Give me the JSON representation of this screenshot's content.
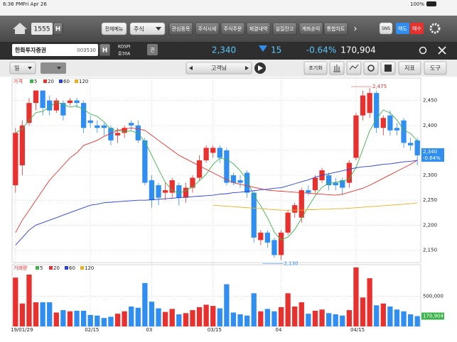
{
  "status_bar": {
    "time": "6:36 PM",
    "date": "Fri Apr 26",
    "battery": "100%"
  },
  "toolbar": {
    "code": "1555",
    "code_suffix": "H",
    "menu_all": "전체메뉴",
    "dropdown": "주식",
    "tabs": [
      "관심종목",
      "주식시세",
      "주식주문",
      "체결내역",
      "실질잔고",
      "계좌손익",
      "통합차트"
    ],
    "sns": "SNS",
    "sell": "매도",
    "buy": "매수"
  },
  "stock": {
    "name": "한화투자증권",
    "code": "003530",
    "code_suffix": "H",
    "market": "KOSPI",
    "market_sub": "증30A",
    "badge": "관",
    "price": "2,340",
    "change": "15",
    "change_pct": "-0.64%",
    "volume": "170,904"
  },
  "controls": {
    "period": "일",
    "mode": "고객님",
    "reset": "초기화",
    "indicator": "지표",
    "tools": "도구"
  },
  "price_panel": {
    "legend_title": "가격",
    "up_color": "#e8312f",
    "down_color": "#2f8ef0",
    "ylim": [
      2125,
      2495
    ],
    "yticks": [
      {
        "value": 2150,
        "label": "2,150"
      },
      {
        "value": 2200,
        "label": "2,200"
      },
      {
        "value": 2250,
        "label": "2,250"
      },
      {
        "value": 2300,
        "label": "2,300"
      },
      {
        "value": 2350,
        "label": "2,350"
      },
      {
        "value": 2400,
        "label": "2,400"
      },
      {
        "value": 2450,
        "label": "2,450"
      }
    ],
    "categories": [
      "19/01/29",
      null,
      null,
      null,
      null,
      null,
      null,
      null,
      null,
      null,
      null,
      "02/15",
      null,
      null,
      null,
      null,
      null,
      null,
      null,
      null,
      "03",
      null,
      null,
      null,
      null,
      null,
      null,
      null,
      null,
      "03/15",
      null,
      null,
      null,
      null,
      null,
      null,
      null,
      null,
      null,
      "04",
      null,
      null,
      null,
      null,
      null,
      null,
      null,
      null,
      null,
      null,
      "04/15",
      null,
      null,
      null,
      null,
      null,
      null,
      null,
      null,
      null
    ],
    "candles": [
      {
        "o": 2280,
        "h": 2395,
        "l": 2265,
        "c": 2385
      },
      {
        "o": 2320,
        "h": 2410,
        "l": 2300,
        "c": 2400
      },
      {
        "o": 2405,
        "h": 2455,
        "l": 2400,
        "c": 2445
      },
      {
        "o": 2445,
        "h": 2470,
        "l": 2430,
        "c": 2470
      },
      {
        "o": 2470,
        "h": 2470,
        "l": 2420,
        "c": 2435
      },
      {
        "o": 2450,
        "h": 2460,
        "l": 2420,
        "c": 2430
      },
      {
        "o": 2430,
        "h": 2455,
        "l": 2425,
        "c": 2450
      },
      {
        "o": 2445,
        "h": 2450,
        "l": 2410,
        "c": 2420
      },
      {
        "o": 2445,
        "h": 2455,
        "l": 2440,
        "c": 2450
      },
      {
        "o": 2450,
        "h": 2455,
        "l": 2435,
        "c": 2445
      },
      {
        "o": 2445,
        "h": 2450,
        "l": 2385,
        "c": 2395
      },
      {
        "o": 2410,
        "h": 2420,
        "l": 2395,
        "c": 2405
      },
      {
        "o": 2400,
        "h": 2410,
        "l": 2385,
        "c": 2395
      },
      {
        "o": 2400,
        "h": 2405,
        "l": 2380,
        "c": 2395
      },
      {
        "o": 2395,
        "h": 2400,
        "l": 2360,
        "c": 2370
      },
      {
        "o": 2380,
        "h": 2395,
        "l": 2365,
        "c": 2385
      },
      {
        "o": 2385,
        "h": 2400,
        "l": 2375,
        "c": 2395
      },
      {
        "o": 2405,
        "h": 2410,
        "l": 2390,
        "c": 2400
      },
      {
        "o": 2400,
        "h": 2410,
        "l": 2365,
        "c": 2370
      },
      {
        "o": 2370,
        "h": 2375,
        "l": 2280,
        "c": 2285
      },
      {
        "o": 2290,
        "h": 2300,
        "l": 2235,
        "c": 2250
      },
      {
        "o": 2280,
        "h": 2285,
        "l": 2240,
        "c": 2255
      },
      {
        "o": 2265,
        "h": 2285,
        "l": 2250,
        "c": 2270
      },
      {
        "o": 2265,
        "h": 2295,
        "l": 2255,
        "c": 2290
      },
      {
        "o": 2280,
        "h": 2285,
        "l": 2240,
        "c": 2255
      },
      {
        "o": 2255,
        "h": 2285,
        "l": 2245,
        "c": 2275
      },
      {
        "o": 2275,
        "h": 2300,
        "l": 2265,
        "c": 2295
      },
      {
        "o": 2295,
        "h": 2340,
        "l": 2290,
        "c": 2330
      },
      {
        "o": 2330,
        "h": 2360,
        "l": 2325,
        "c": 2355
      },
      {
        "o": 2345,
        "h": 2360,
        "l": 2335,
        "c": 2355
      },
      {
        "o": 2355,
        "h": 2360,
        "l": 2325,
        "c": 2335
      },
      {
        "o": 2350,
        "h": 2355,
        "l": 2280,
        "c": 2285
      },
      {
        "o": 2300,
        "h": 2305,
        "l": 2280,
        "c": 2285
      },
      {
        "o": 2290,
        "h": 2300,
        "l": 2275,
        "c": 2285
      },
      {
        "o": 2305,
        "h": 2310,
        "l": 2255,
        "c": 2265
      },
      {
        "o": 2265,
        "h": 2270,
        "l": 2165,
        "c": 2175
      },
      {
        "o": 2170,
        "h": 2190,
        "l": 2160,
        "c": 2185
      },
      {
        "o": 2185,
        "h": 2190,
        "l": 2155,
        "c": 2165
      },
      {
        "o": 2170,
        "h": 2175,
        "l": 2135,
        "c": 2140
      },
      {
        "o": 2140,
        "h": 2190,
        "l": 2130,
        "c": 2185
      },
      {
        "o": 2185,
        "h": 2230,
        "l": 2180,
        "c": 2225
      },
      {
        "o": 2225,
        "h": 2245,
        "l": 2215,
        "c": 2240
      },
      {
        "o": 2215,
        "h": 2275,
        "l": 2205,
        "c": 2270
      },
      {
        "o": 2270,
        "h": 2280,
        "l": 2260,
        "c": 2265
      },
      {
        "o": 2270,
        "h": 2300,
        "l": 2265,
        "c": 2295
      },
      {
        "o": 2290,
        "h": 2315,
        "l": 2285,
        "c": 2310
      },
      {
        "o": 2300,
        "h": 2305,
        "l": 2270,
        "c": 2280
      },
      {
        "o": 2285,
        "h": 2295,
        "l": 2270,
        "c": 2280
      },
      {
        "o": 2290,
        "h": 2295,
        "l": 2260,
        "c": 2275
      },
      {
        "o": 2285,
        "h": 2330,
        "l": 2275,
        "c": 2325
      },
      {
        "o": 2335,
        "h": 2425,
        "l": 2330,
        "c": 2420
      },
      {
        "o": 2420,
        "h": 2470,
        "l": 2410,
        "c": 2460
      },
      {
        "o": 2425,
        "h": 2475,
        "l": 2415,
        "c": 2465
      },
      {
        "o": 2465,
        "h": 2470,
        "l": 2385,
        "c": 2395
      },
      {
        "o": 2395,
        "h": 2420,
        "l": 2380,
        "c": 2415
      },
      {
        "o": 2420,
        "h": 2430,
        "l": 2380,
        "c": 2390
      },
      {
        "o": 2395,
        "h": 2405,
        "l": 2380,
        "c": 2390
      },
      {
        "o": 2410,
        "h": 2415,
        "l": 2355,
        "c": 2365
      },
      {
        "o": 2365,
        "h": 2375,
        "l": 2350,
        "c": 2360
      },
      {
        "o": 2370,
        "h": 2375,
        "l": 2320,
        "c": 2340
      }
    ],
    "series": [
      {
        "name": "5",
        "color": "#3cb44b",
        "values": [
          2385,
          2393,
          2410,
          2426,
          2428,
          2437,
          2447,
          2442,
          2437,
          2439,
          2432,
          2423,
          2418,
          2407,
          2392,
          2390,
          2388,
          2389,
          2384,
          2367,
          2340,
          2312,
          2286,
          2270,
          2264,
          2269,
          2277,
          2289,
          2302,
          2322,
          2334,
          2332,
          2323,
          2309,
          2291,
          2259,
          2239,
          2215,
          2186,
          2170,
          2176,
          2191,
          2214,
          2237,
          2259,
          2276,
          2284,
          2286,
          2288,
          2293,
          2316,
          2352,
          2389,
          2413,
          2431,
          2425,
          2411,
          2391,
          2384,
          2369
        ]
      },
      {
        "name": "20",
        "color": "#e8312f",
        "values": [
          2185,
          2210,
          2230,
          2250,
          2270,
          2290,
          2305,
          2320,
          2335,
          2345,
          2360,
          2365,
          2370,
          2378,
          2384,
          2390,
          2393,
          2395,
          2393,
          2390,
          2380,
          2370,
          2360,
          2350,
          2340,
          2333,
          2326,
          2319,
          2312,
          2305,
          2298,
          2291,
          2285,
          2282,
          2279,
          2276,
          2273,
          2270,
          2269,
          2268,
          2267,
          2266,
          2265,
          2264,
          2263,
          2262,
          2261,
          2260,
          2262,
          2266,
          2270,
          2274,
          2280,
          2287,
          2294,
          2301,
          2308,
          2315,
          2322,
          2330
        ]
      },
      {
        "name": "60",
        "color": "#2a3fd6",
        "values": [
          2160,
          2175,
          2190,
          2200,
          2205,
          2210,
          2215,
          2220,
          2225,
          2230,
          2235,
          2240,
          2242,
          2245,
          2246,
          2247,
          2248,
          2249,
          2250,
          2250,
          2251,
          2252,
          2253,
          2254,
          2255,
          2256,
          2257,
          2258,
          2259,
          2260,
          2262,
          2263,
          2265,
          2266,
          2268,
          2269,
          2271,
          2272,
          2274,
          2275,
          2279,
          2283,
          2287,
          2291,
          2296,
          2300,
          2303,
          2306,
          2309,
          2312,
          2315,
          2317,
          2318,
          2320,
          2322,
          2323,
          2325,
          2327,
          2328,
          2330
        ]
      },
      {
        "name": "120",
        "color": "#e8b020",
        "values": [
          null,
          null,
          null,
          null,
          null,
          null,
          null,
          null,
          null,
          null,
          null,
          null,
          null,
          null,
          null,
          null,
          null,
          null,
          null,
          null,
          null,
          null,
          null,
          null,
          null,
          null,
          null,
          null,
          null,
          2240,
          2239,
          2238,
          2237,
          2236,
          2235,
          2234,
          2233,
          2232,
          2231,
          2230,
          2230,
          2230,
          2230,
          2231,
          2231,
          2232,
          2232,
          2233,
          2233,
          2234,
          2235,
          2236,
          2237,
          2238,
          2239,
          2240,
          2241,
          2242,
          2243,
          2245
        ]
      }
    ],
    "annotations": [
      {
        "label": "2,475",
        "value": 2475
      },
      {
        "label": "2,130",
        "value": 2130
      }
    ],
    "last_label": "2,340",
    "last_pct": "-0.64%"
  },
  "volume_panel": {
    "legend_title": "거래량",
    "legend": [
      {
        "name": "5",
        "color": "#3cb44b"
      },
      {
        "name": "20",
        "color": "#e8312f"
      },
      {
        "name": "60",
        "color": "#2a3fd6"
      },
      {
        "name": "120",
        "color": "#e8b020"
      }
    ],
    "ylim": [
      0,
      1025000
    ],
    "yticks": [
      {
        "value": 500000,
        "label": "500,000"
      }
    ],
    "values": [
      810000,
      380000,
      860000,
      400000,
      400000,
      400000,
      230000,
      270000,
      250000,
      260000,
      260000,
      190000,
      180000,
      140000,
      160000,
      210000,
      250000,
      330000,
      310000,
      720000,
      410000,
      300000,
      240000,
      290000,
      200000,
      220000,
      270000,
      320000,
      360000,
      340000,
      300000,
      700000,
      230000,
      200000,
      180000,
      550000,
      250000,
      290000,
      250000,
      320000,
      550000,
      330000,
      400000,
      210000,
      260000,
      280000,
      220000,
      200000,
      180000,
      270000,
      980000,
      480000,
      800000,
      350000,
      380000,
      330000,
      280000,
      250000,
      200000,
      170904
    ],
    "last_label": "170,904"
  }
}
